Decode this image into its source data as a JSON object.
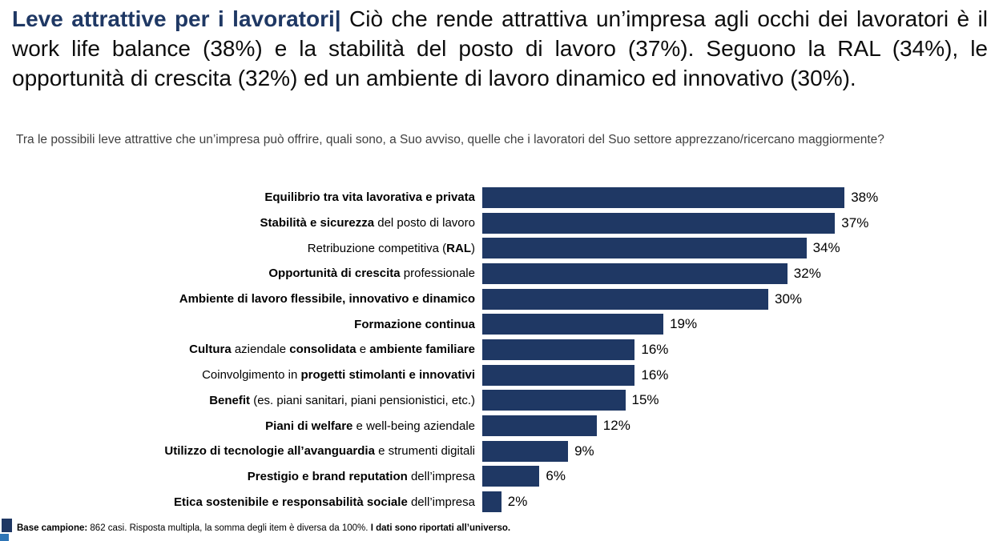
{
  "title": {
    "highlight": "Leve attrattive per i lavoratori|",
    "rest": " Ciò che rende attrattiva un’impresa agli occhi dei lavoratori è il work life balance (38%) e la stabilità del posto di lavoro (37%). Seguono la RAL (34%), le opportunità di crescita (32%) ed un ambiente di lavoro dinamico ed innovativo (30%)."
  },
  "question": "Tra le possibili leve attrattive che un’impresa può offrire, quali sono, a Suo avviso, quelle che i lavoratori del Suo settore apprezzano/ricercano maggiormente?",
  "chart_data": {
    "type": "bar",
    "orientation": "horizontal",
    "title": "Leve attrattive per i lavoratori",
    "xlabel": "",
    "ylabel": "",
    "xlim": [
      0,
      40
    ],
    "grid": false,
    "legend": "none",
    "value_suffix": "%",
    "bar_color": "#1F3864",
    "categories": [
      "Equilibrio tra vita lavorativa e privata",
      "Stabilità e sicurezza del posto di lavoro",
      "Retribuzione competitiva (RAL)",
      "Opportunità di crescita professionale",
      "Ambiente di lavoro flessibile, innovativo e dinamico",
      "Formazione continua",
      "Cultura aziendale consolidata e ambiente familiare",
      "Coinvolgimento in progetti stimolanti e innovativi",
      "Benefit (es. piani sanitari, piani pensionistici, etc.)",
      "Piani di welfare e well-being aziendale",
      "Utilizzo di tecnologie all’avanguardia e strumenti digitali",
      "Prestigio e brand reputation dell’impresa",
      "Etica sostenibile e responsabilità sociale dell’impresa"
    ],
    "label_runs": [
      [
        {
          "t": "Equilibrio tra vita lavorativa e privata",
          "b": true
        }
      ],
      [
        {
          "t": "Stabilità e sicurezza",
          "b": true
        },
        {
          "t": " del posto di lavoro",
          "b": false
        }
      ],
      [
        {
          "t": "Retribuzione competitiva (",
          "b": false
        },
        {
          "t": "RAL",
          "b": true
        },
        {
          "t": ")",
          "b": false
        }
      ],
      [
        {
          "t": "Opportunità di crescita",
          "b": true
        },
        {
          "t": " professionale",
          "b": false
        }
      ],
      [
        {
          "t": "Ambiente di lavoro flessibile, innovativo e dinamico",
          "b": true
        }
      ],
      [
        {
          "t": "Formazione continua",
          "b": true
        }
      ],
      [
        {
          "t": "Cultura",
          "b": true
        },
        {
          "t": " aziendale ",
          "b": false
        },
        {
          "t": "consolidata",
          "b": true
        },
        {
          "t": " e ",
          "b": false
        },
        {
          "t": "ambiente familiare",
          "b": true
        }
      ],
      [
        {
          "t": "Coinvolgimento in ",
          "b": false
        },
        {
          "t": "progetti stimolanti e innovativi",
          "b": true
        }
      ],
      [
        {
          "t": "Benefit",
          "b": true
        },
        {
          "t": " (es. piani sanitari, piani pensionistici, etc.)",
          "b": false
        }
      ],
      [
        {
          "t": "Piani di welfare",
          "b": true
        },
        {
          "t": " e well-being aziendale",
          "b": false
        }
      ],
      [
        {
          "t": "Utilizzo di tecnologie all’avanguardia",
          "b": true
        },
        {
          "t": " e strumenti digitali",
          "b": false
        }
      ],
      [
        {
          "t": "Prestigio e brand reputation",
          "b": true
        },
        {
          "t": " dell’impresa",
          "b": false
        }
      ],
      [
        {
          "t": "Etica sostenibile e responsabilità sociale",
          "b": true
        },
        {
          "t": " dell’impresa",
          "b": false
        }
      ]
    ],
    "values": [
      38,
      37,
      34,
      32,
      30,
      19,
      16,
      16,
      15,
      12,
      9,
      6,
      2
    ]
  },
  "footer": {
    "bold_prefix": "Base campione:",
    "regular": " 862 casi. Risposta multipla, la somma degli item è diversa da 100%. ",
    "bold_suffix": "I dati sono riportati all’universo."
  },
  "colors": {
    "accent_navy": "#1F3864",
    "bar": "#1F3864",
    "question_gray": "#404040",
    "decor_light_blue": "#2E75B6",
    "text_black": "#0d0d0d"
  }
}
